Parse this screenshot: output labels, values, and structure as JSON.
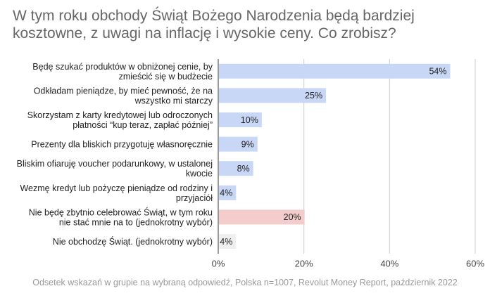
{
  "chart_data": {
    "type": "bar",
    "orientation": "horizontal",
    "title": "W tym roku obchody Świąt Bożego Narodzenia będą bardziej kosztowne, z uwagi na inflację i wysokie ceny. Co zrobisz?",
    "categories": [
      [
        "Będę szukać produktów w obniżonej cenie, by",
        "zmieścić się w budżecie"
      ],
      [
        "Odkładam pieniądze, by mieć pewność, że na",
        "wszystko mi starczy"
      ],
      [
        "Skorzystam z karty kredytowej lub odroczonych",
        "płatności “kup teraz, zapłać później”"
      ],
      [
        "Prezenty dla bliskich przygotuję własnoręcznie"
      ],
      [
        "Bliskim ofiaruję voucher podarunkowy, w ustalonej",
        "kwocie"
      ],
      [
        "Wezmę kredyt lub pożyczę pieniądze od rodziny i",
        "przyjaciół"
      ],
      [
        "Nie będę zbytnio celebrować Świąt, w tym roku",
        "nie stać mnie na to (jednokrotny wybór)"
      ],
      [
        "Nie obchodzę Świąt. (jednokrotny wybór)"
      ]
    ],
    "values": [
      54,
      25,
      10,
      9,
      8,
      4,
      20,
      4
    ],
    "value_labels": [
      "54%",
      "25%",
      "10%",
      "9%",
      "8%",
      "4%",
      "20%",
      "4%"
    ],
    "bar_colors": [
      "#c9d7f6",
      "#c9d7f6",
      "#c9d7f6",
      "#c9d7f6",
      "#c9d7f6",
      "#c9d7f6",
      "#f4cccc",
      "#efefef"
    ],
    "xlim": [
      0,
      60
    ],
    "xticks": [
      0,
      20,
      40,
      60
    ],
    "xtick_labels": [
      "0%",
      "20%",
      "40%",
      "60%"
    ],
    "grid": true,
    "legend": "none"
  },
  "footer": "Odsetek wskazań w grupie na wybraną odpowiedź, Polska n=1007, Revolut Money Report, październik 2022"
}
